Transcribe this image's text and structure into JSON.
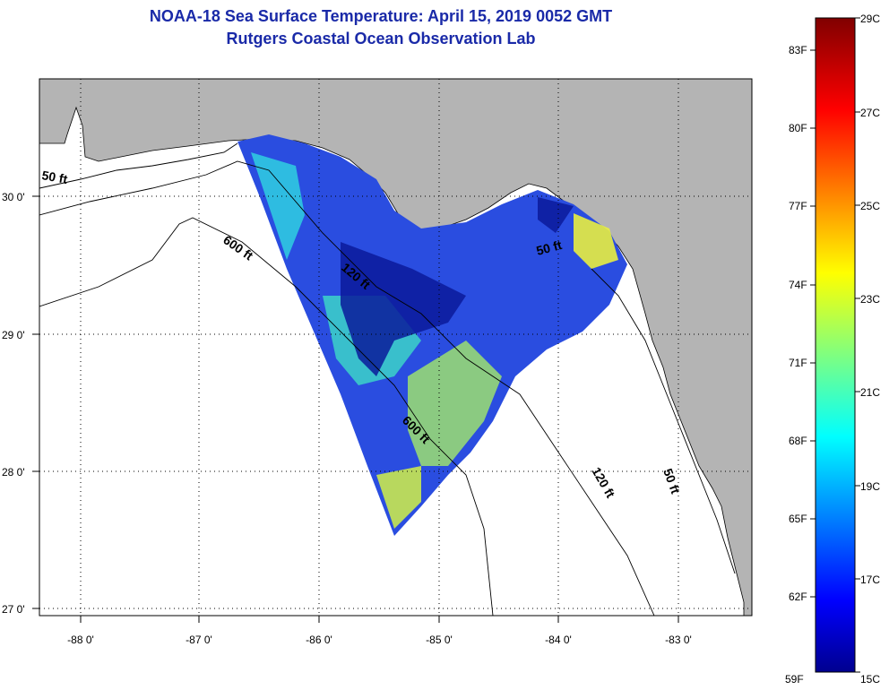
{
  "header": {
    "title": "NOAA-18 Sea Surface Temperature:  April 15, 2019 0052 GMT",
    "subtitle": "Rutgers Coastal Ocean Observation Lab"
  },
  "map": {
    "lat_ticks": [
      "30 0'",
      "29 0'",
      "28 0'",
      "27 0'"
    ],
    "lon_ticks": [
      "-88 0'",
      "-87 0'",
      "-86 0'",
      "-85 0'",
      "-84 0'",
      "-83 0'"
    ],
    "contour_labels": [
      "50 ft",
      "600 ft",
      "120 ft",
      "600 ft",
      "50 ft",
      "120 ft",
      "50 ft"
    ],
    "colors": {
      "land": "#b4b4b4",
      "water_no_data": "#ffffff",
      "grid": "#000000",
      "title": "#1a2aa8"
    }
  },
  "colorbar": {
    "f_labels": [
      "83F",
      "80F",
      "77F",
      "74F",
      "71F",
      "68F",
      "65F",
      "62F",
      "59F"
    ],
    "c_labels": [
      "29C",
      "27C",
      "25C",
      "23C",
      "21C",
      "19C",
      "17C",
      "15C"
    ],
    "range_c": [
      15,
      29
    ],
    "range_f": [
      59,
      84.2
    ],
    "colormap": "jet"
  }
}
